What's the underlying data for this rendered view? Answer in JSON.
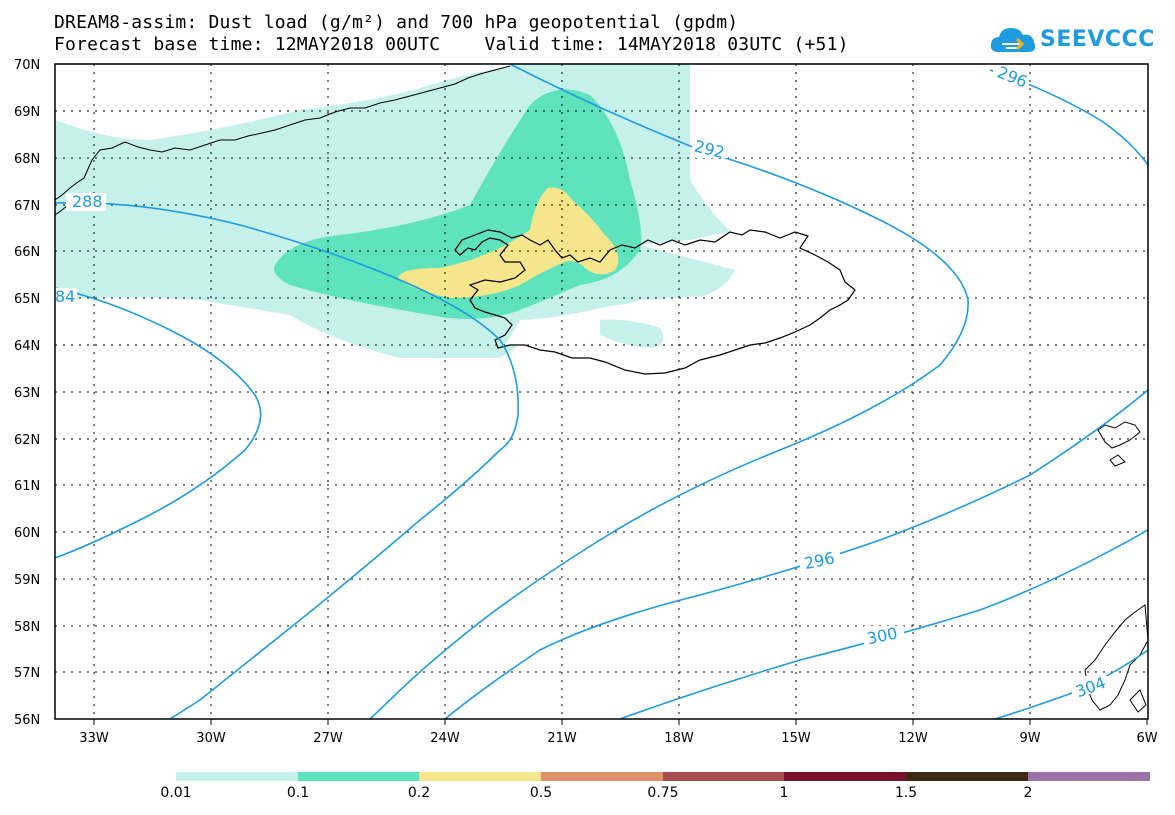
{
  "header": {
    "title": "DREAM8-assim: Dust load (g/m²) and 700 hPa geopotential (gpdm)",
    "subtitle": "Forecast base time: 12MAY2018 00UTC    Valid time: 14MAY2018 03UTC (+51)"
  },
  "logo": {
    "text": "SEEVCCC",
    "icon": "cloud-icon"
  },
  "map": {
    "lat_labels": [
      "70N",
      "69N",
      "68N",
      "67N",
      "66N",
      "65N",
      "64N",
      "63N",
      "62N",
      "61N",
      "60N",
      "59N",
      "58N",
      "57N",
      "56N"
    ],
    "lon_labels": [
      "33W",
      "30W",
      "27W",
      "24W",
      "21W",
      "18W",
      "15W",
      "12W",
      "9W",
      "6W"
    ],
    "contour_labels": [
      "296",
      "292",
      "288",
      "84",
      "296",
      "300",
      "304"
    ],
    "contour_color": "#1f9be0"
  },
  "colorbar": {
    "colors": [
      "#c6f0ea",
      "#5fe3bd",
      "#f5e68c",
      "#e0906a",
      "#a84e4e",
      "#7a1030",
      "#3e2a14",
      "#9a72a8"
    ],
    "labels": [
      "0.01",
      "0.1",
      "0.2",
      "0.5",
      "0.75",
      "1",
      "1.5",
      "2"
    ]
  }
}
